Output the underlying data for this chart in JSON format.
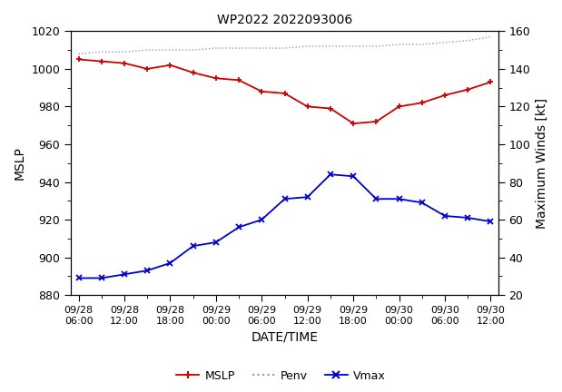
{
  "title": "WP2022 2022093006",
  "xlabel": "DATE/TIME",
  "ylabel_left": "MSLP",
  "ylabel_right": "Maximum Winds [kt]",
  "x_tick_labels": [
    "09/28\n06:00",
    "09/28\n12:00",
    "09/28\n18:00",
    "09/29\n00:00",
    "09/29\n06:00",
    "09/29\n12:00",
    "09/29\n18:00",
    "09/30\n00:00",
    "09/30\n06:00",
    "09/30\n12:00"
  ],
  "x_tick_hours": [
    0,
    6,
    12,
    18,
    24,
    30,
    36,
    42,
    48,
    54
  ],
  "xlim": [
    -1,
    55
  ],
  "ylim_left": [
    880,
    1020
  ],
  "ylim_right": [
    20,
    160
  ],
  "yticks_left": [
    880,
    900,
    920,
    940,
    960,
    980,
    1000,
    1020
  ],
  "yticks_right": [
    20,
    40,
    60,
    80,
    100,
    120,
    140,
    160
  ],
  "penv_x": [
    0,
    3,
    6,
    9,
    12,
    15,
    18,
    21,
    24,
    27,
    30,
    33,
    36,
    39,
    42,
    45,
    48,
    51,
    54
  ],
  "penv_y": [
    1005,
    1004,
    1003,
    1000,
    1002,
    998,
    995,
    994,
    988,
    987,
    980,
    979,
    971,
    972,
    980,
    982,
    986,
    989,
    993
  ],
  "vmax_x": [
    0,
    3,
    6,
    9,
    12,
    15,
    18,
    21,
    24,
    27,
    30,
    33,
    36,
    39,
    42,
    45,
    48,
    51,
    54
  ],
  "vmax_y": [
    148,
    149,
    149,
    150,
    150,
    150,
    151,
    151,
    151,
    151,
    152,
    152,
    152,
    152,
    153,
    153,
    154,
    155,
    157
  ],
  "mslp_x": [
    0,
    3,
    6,
    9,
    12,
    15,
    18,
    21,
    24,
    27,
    30,
    33,
    36,
    39,
    42,
    45,
    48,
    51,
    54
  ],
  "mslp_y": [
    889,
    889,
    891,
    893,
    897,
    906,
    908,
    916,
    920,
    931,
    932,
    944,
    943,
    931,
    931,
    929,
    922,
    921,
    919
  ],
  "penv_color": "#cc0000",
  "mslp_color": "#0000cc",
  "vmax_color": "#999999",
  "figsize": [
    6.19,
    4.32
  ],
  "dpi": 100
}
